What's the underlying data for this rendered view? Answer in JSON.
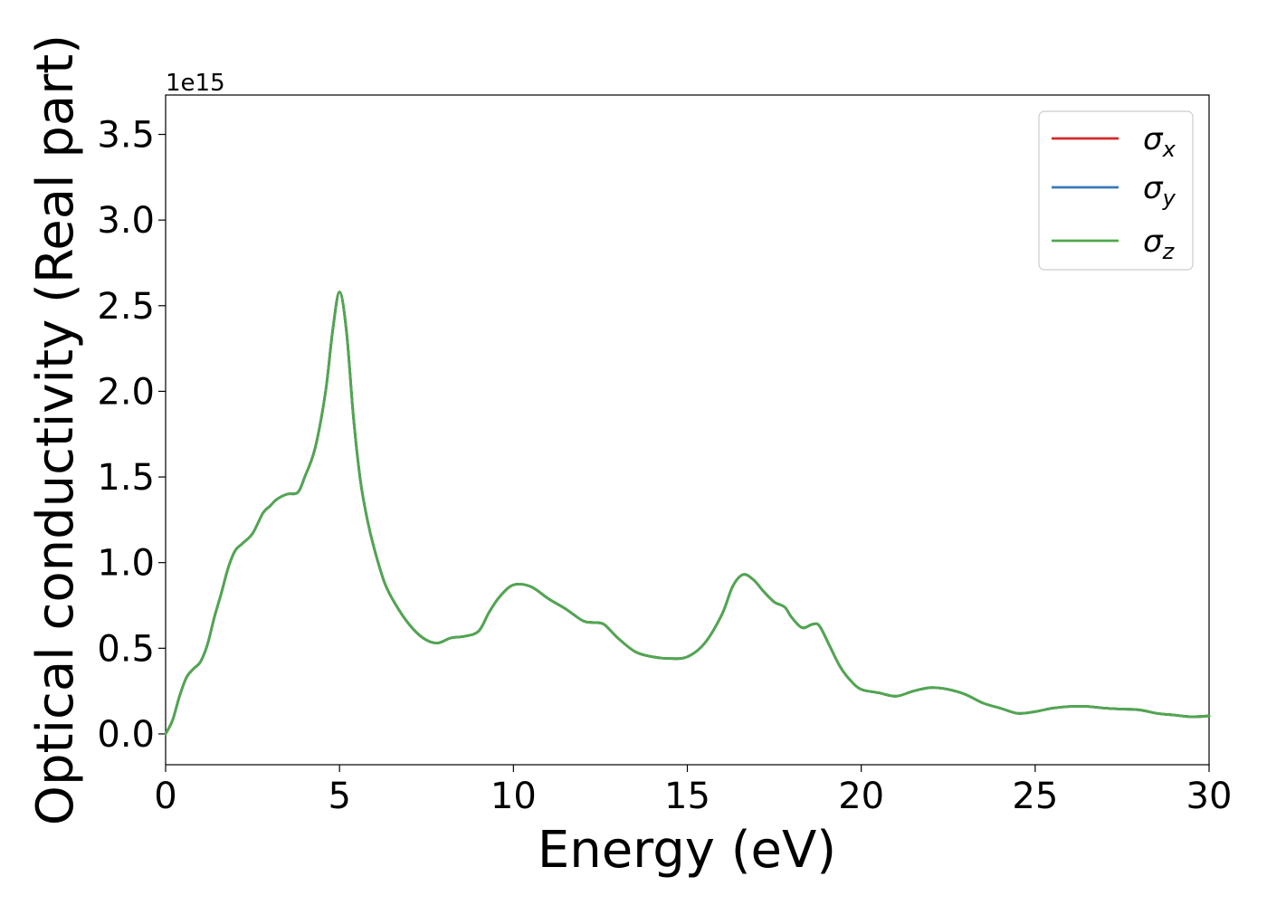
{
  "chart_data": {
    "type": "line",
    "xlabel": "Energy (eV)",
    "ylabel": "Optical conductivity (Real part)",
    "offset_label": "1e15",
    "xlim": [
      0,
      30
    ],
    "ylim": [
      -0.18,
      3.73
    ],
    "x_ticks": [
      0,
      5,
      10,
      15,
      20,
      25,
      30
    ],
    "x_tick_labels": [
      "0",
      "5",
      "10",
      "15",
      "20",
      "25",
      "30"
    ],
    "y_ticks": [
      0.0,
      0.5,
      1.0,
      1.5,
      2.0,
      2.5,
      3.0,
      3.5
    ],
    "y_tick_labels": [
      "0.0",
      "0.5",
      "1.0",
      "1.5",
      "2.0",
      "2.5",
      "3.0",
      "3.5"
    ],
    "grid": false,
    "legend_placement": "top-right",
    "x": [
      0,
      0.2,
      0.4,
      0.6,
      0.8,
      1.0,
      1.2,
      1.4,
      1.6,
      1.8,
      2.0,
      2.2,
      2.5,
      2.8,
      3.0,
      3.2,
      3.5,
      3.8,
      4.0,
      4.3,
      4.6,
      4.8,
      5.0,
      5.2,
      5.4,
      5.6,
      5.8,
      6.0,
      6.3,
      6.6,
      7.0,
      7.4,
      7.8,
      8.2,
      8.6,
      9.0,
      9.3,
      9.6,
      10.0,
      10.5,
      11.0,
      11.5,
      12.0,
      12.3,
      12.6,
      13.0,
      13.5,
      14.0,
      14.5,
      15.0,
      15.5,
      16.0,
      16.3,
      16.6,
      16.9,
      17.2,
      17.5,
      17.8,
      18.0,
      18.3,
      18.6,
      18.8,
      19.1,
      19.4,
      19.7,
      20.0,
      20.5,
      21.0,
      21.5,
      22.0,
      22.5,
      23.0,
      23.5,
      24.0,
      24.5,
      25.0,
      25.5,
      26.0,
      26.5,
      27.0,
      27.5,
      28.0,
      28.5,
      29.0,
      29.5,
      30.0
    ],
    "series": [
      {
        "name": "σx",
        "color": "#d62728",
        "values": [
          0.0,
          0.08,
          0.22,
          0.33,
          0.38,
          0.42,
          0.52,
          0.68,
          0.82,
          0.97,
          1.07,
          1.11,
          1.17,
          1.29,
          1.33,
          1.37,
          1.4,
          1.41,
          1.5,
          1.67,
          2.0,
          2.35,
          2.58,
          2.35,
          1.85,
          1.48,
          1.25,
          1.08,
          0.88,
          0.76,
          0.64,
          0.56,
          0.53,
          0.56,
          0.57,
          0.6,
          0.71,
          0.8,
          0.87,
          0.86,
          0.79,
          0.73,
          0.66,
          0.65,
          0.64,
          0.56,
          0.48,
          0.45,
          0.44,
          0.45,
          0.53,
          0.7,
          0.86,
          0.93,
          0.9,
          0.83,
          0.77,
          0.74,
          0.68,
          0.62,
          0.64,
          0.63,
          0.51,
          0.39,
          0.31,
          0.26,
          0.24,
          0.22,
          0.25,
          0.27,
          0.26,
          0.23,
          0.18,
          0.15,
          0.12,
          0.13,
          0.15,
          0.16,
          0.16,
          0.15,
          0.145,
          0.14,
          0.12,
          0.11,
          0.1,
          0.105
        ]
      },
      {
        "name": "σy",
        "color": "#3a7ab8",
        "values": [
          0.0,
          0.08,
          0.22,
          0.33,
          0.38,
          0.42,
          0.52,
          0.68,
          0.82,
          0.97,
          1.07,
          1.11,
          1.17,
          1.29,
          1.33,
          1.37,
          1.4,
          1.41,
          1.5,
          1.67,
          2.0,
          2.35,
          2.58,
          2.35,
          1.85,
          1.48,
          1.25,
          1.08,
          0.88,
          0.76,
          0.64,
          0.56,
          0.53,
          0.56,
          0.57,
          0.6,
          0.71,
          0.8,
          0.87,
          0.86,
          0.79,
          0.73,
          0.66,
          0.65,
          0.64,
          0.56,
          0.48,
          0.45,
          0.44,
          0.45,
          0.53,
          0.7,
          0.86,
          0.93,
          0.9,
          0.83,
          0.77,
          0.74,
          0.68,
          0.62,
          0.64,
          0.63,
          0.51,
          0.39,
          0.31,
          0.26,
          0.24,
          0.22,
          0.25,
          0.27,
          0.26,
          0.23,
          0.18,
          0.15,
          0.12,
          0.13,
          0.15,
          0.16,
          0.16,
          0.15,
          0.145,
          0.14,
          0.12,
          0.11,
          0.1,
          0.105
        ]
      },
      {
        "name": "σz",
        "color": "#4fa84d",
        "values": [
          0.0,
          0.08,
          0.22,
          0.33,
          0.38,
          0.42,
          0.52,
          0.68,
          0.82,
          0.97,
          1.07,
          1.11,
          1.17,
          1.29,
          1.33,
          1.37,
          1.4,
          1.41,
          1.5,
          1.67,
          2.0,
          2.35,
          2.58,
          2.35,
          1.85,
          1.48,
          1.25,
          1.08,
          0.88,
          0.76,
          0.64,
          0.56,
          0.53,
          0.56,
          0.57,
          0.6,
          0.71,
          0.8,
          0.87,
          0.86,
          0.79,
          0.73,
          0.66,
          0.65,
          0.64,
          0.56,
          0.48,
          0.45,
          0.44,
          0.45,
          0.53,
          0.7,
          0.86,
          0.93,
          0.9,
          0.83,
          0.77,
          0.74,
          0.68,
          0.62,
          0.64,
          0.63,
          0.51,
          0.39,
          0.31,
          0.26,
          0.24,
          0.22,
          0.25,
          0.27,
          0.26,
          0.23,
          0.18,
          0.15,
          0.12,
          0.13,
          0.15,
          0.16,
          0.16,
          0.15,
          0.145,
          0.14,
          0.12,
          0.11,
          0.1,
          0.105
        ]
      }
    ],
    "legend": [
      {
        "symbol": "σ",
        "sub": "x",
        "color": "#d62728"
      },
      {
        "symbol": "σ",
        "sub": "y",
        "color": "#3a7ab8"
      },
      {
        "symbol": "σ",
        "sub": "z",
        "color": "#4fa84d"
      }
    ]
  }
}
